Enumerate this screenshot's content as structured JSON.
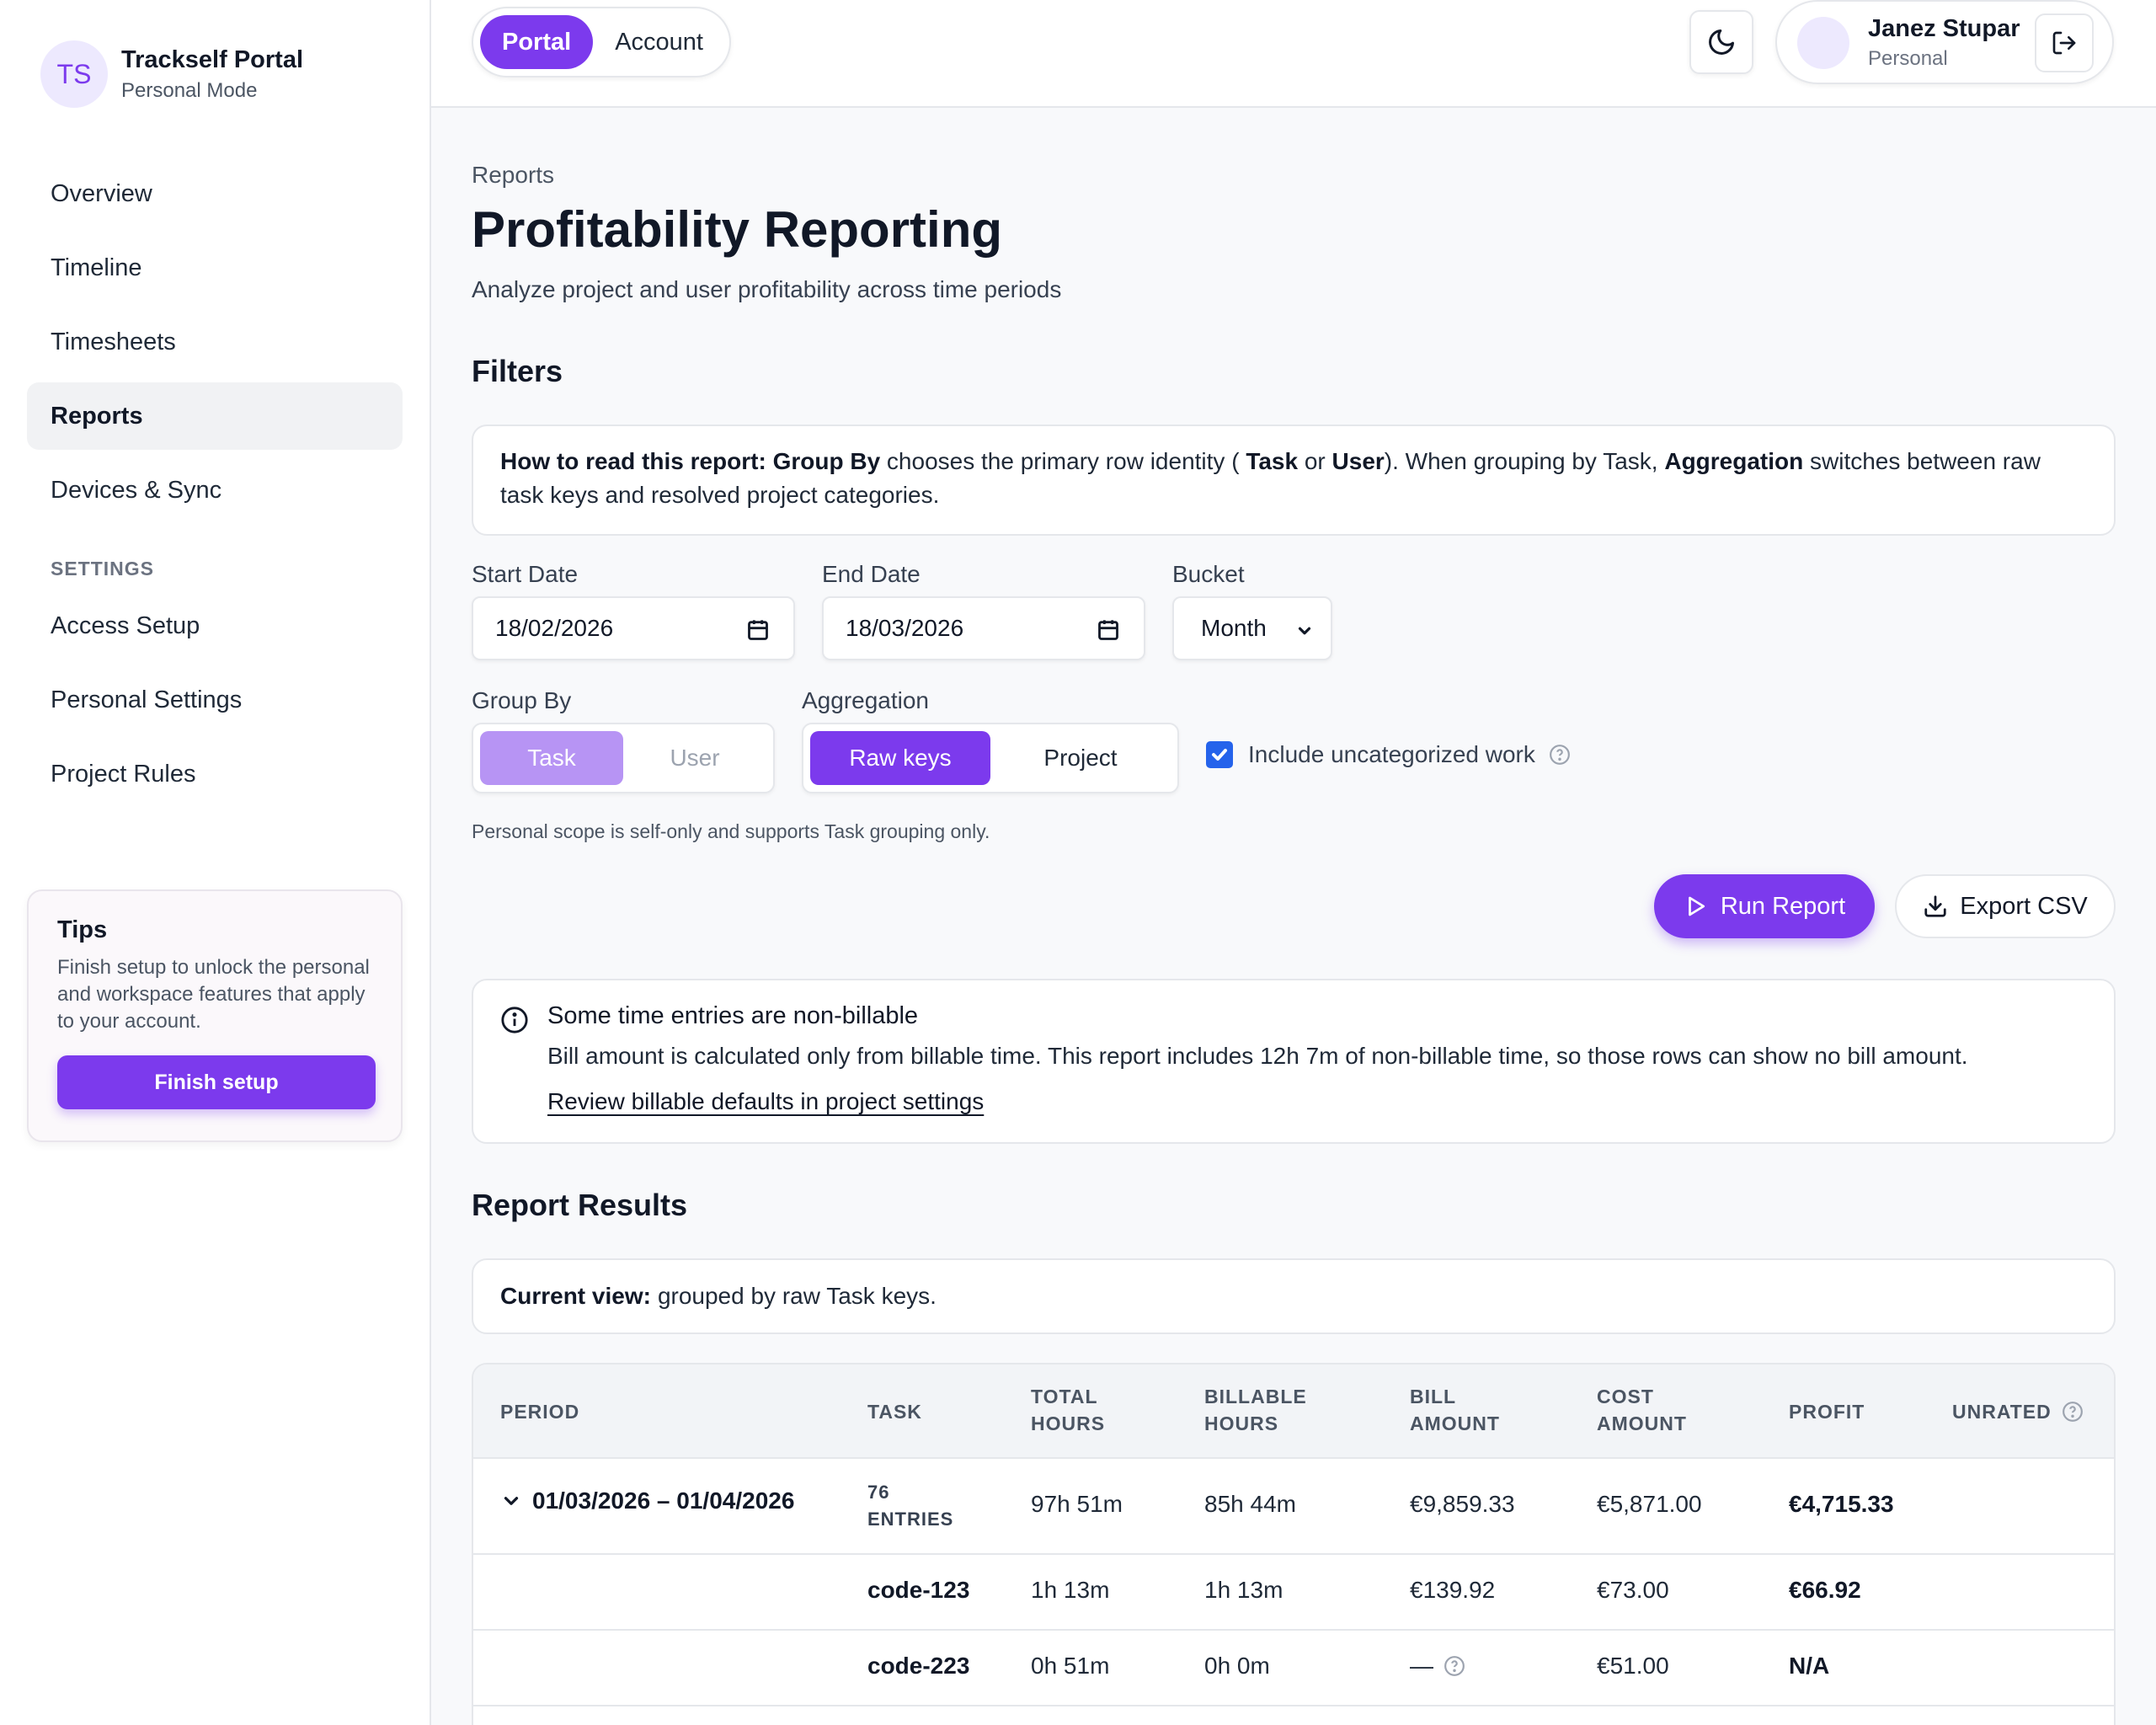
{
  "sidebar": {
    "brand_initials": "TS",
    "brand_title": "Trackself Portal",
    "brand_subtitle": "Personal Mode",
    "nav": [
      "Overview",
      "Timeline",
      "Timesheets",
      "Reports",
      "Devices & Sync"
    ],
    "active_nav": "Reports",
    "settings_heading": "SETTINGS",
    "settings": [
      "Access Setup",
      "Personal Settings",
      "Project Rules"
    ],
    "tips_title": "Tips",
    "tips_text": "Finish setup to unlock the personal and workspace features that apply to your account.",
    "tips_button": "Finish setup"
  },
  "topbar": {
    "tabs": [
      "Portal",
      "Account"
    ],
    "active_tab": "Portal",
    "user_name": "Janez Stupar",
    "user_role": "Personal",
    "theme_icon": "moon-icon",
    "logout_icon": "logout-icon"
  },
  "page": {
    "breadcrumb": "Reports",
    "title": "Profitability Reporting",
    "subtitle": "Analyze project and user profitability across time periods"
  },
  "filters": {
    "heading": "Filters",
    "how": {
      "lead": "How to read this report:",
      "group_by": "Group By",
      "t1": " chooses the primary row identity ( ",
      "task": "Task",
      "or": " or ",
      "user": "User",
      "t2": "). When grouping by Task, ",
      "aggregation": "Aggregation",
      "t3": " switches between raw task keys and resolved project categories."
    },
    "start_label": "Start Date",
    "start_value": "18/02/2026",
    "end_label": "End Date",
    "end_value": "18/03/2026",
    "bucket_label": "Bucket",
    "bucket_value": "Month",
    "group_label": "Group By",
    "group_options": [
      "Task",
      "User"
    ],
    "group_selected": "Task",
    "agg_label": "Aggregation",
    "agg_options": [
      "Raw keys",
      "Project"
    ],
    "agg_selected": "Raw keys",
    "include_label": "Include uncategorized work",
    "include_checked": true,
    "hint": "Personal scope is self-only and supports Task grouping only.",
    "run_label": "Run Report",
    "export_label": "Export CSV"
  },
  "notice": {
    "title": "Some time entries are non-billable",
    "text": "Bill amount is calculated only from billable time. This report includes 12h 7m of non-billable time, so those rows can show no bill amount.",
    "link": "Review billable defaults in project settings"
  },
  "results": {
    "heading": "Report Results",
    "view_lead": "Current view:",
    "view_text": "grouped by raw Task keys.",
    "columns": {
      "period": "PERIOD",
      "task": "TASK",
      "total_1": "TOTAL",
      "total_2": "HOURS",
      "billable_1": "BILLABLE",
      "billable_2": "HOURS",
      "bill_1": "BILL",
      "bill_2": "AMOUNT",
      "cost_1": "COST",
      "cost_2": "AMOUNT",
      "profit": "PROFIT",
      "unrated": "UNRATED"
    },
    "group_row": {
      "period": "01/03/2026 – 01/04/2026",
      "entries_count": "76",
      "entries_label": "ENTRIES",
      "total": "97h 51m",
      "billable": "85h 44m",
      "bill": "€9,859.33",
      "cost": "€5,871.00",
      "profit": "€4,715.33"
    },
    "rows": [
      {
        "task": "code-123",
        "total": "1h 13m",
        "billable": "1h 13m",
        "bill": "€139.92",
        "cost": "€73.00",
        "profit": "€66.92"
      },
      {
        "task": "code-223",
        "total": "0h 51m",
        "billable": "0h 0m",
        "bill": "—",
        "cost": "€51.00",
        "profit": "N/A"
      }
    ]
  }
}
